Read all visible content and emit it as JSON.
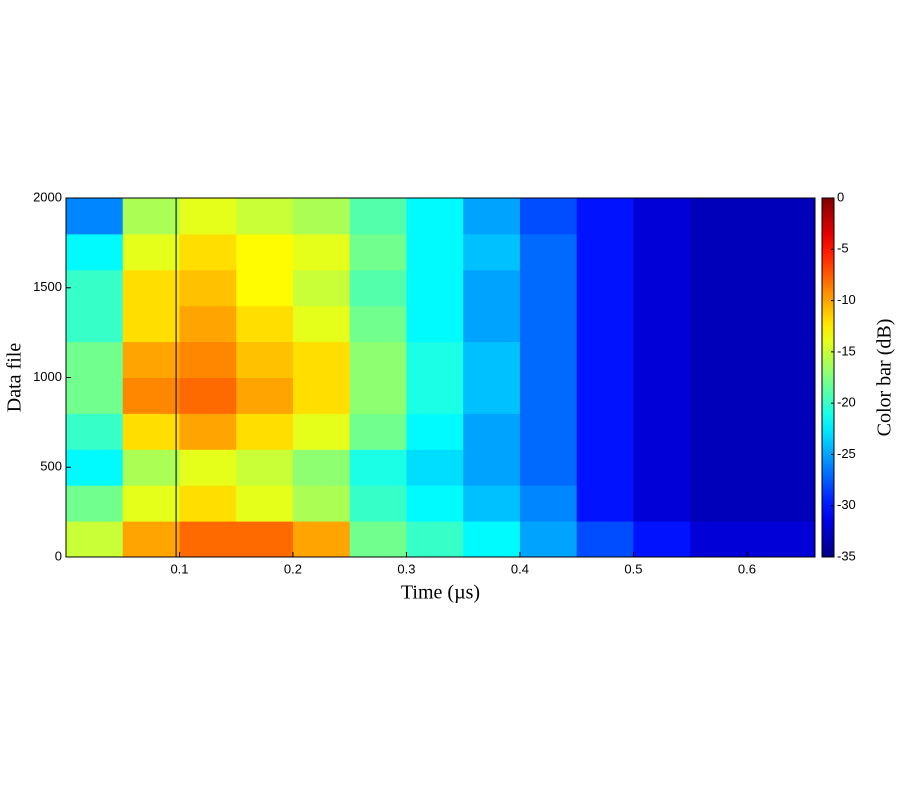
{
  "chart_data": {
    "type": "heatmap",
    "xlabel": "Time (µs)",
    "ylabel": "Data file",
    "colorbar_label": "Color bar (dB)",
    "colormap": "jet",
    "x": [
      0.025,
      0.075,
      0.125,
      0.175,
      0.225,
      0.275,
      0.325,
      0.375,
      0.425,
      0.475,
      0.525,
      0.575,
      0.625
    ],
    "y": [
      100,
      300,
      500,
      700,
      900,
      1100,
      1300,
      1500,
      1700,
      1900
    ],
    "values": [
      [
        -15,
        -10,
        -8,
        -8,
        -10,
        -18,
        -20,
        -22,
        -25,
        -28,
        -30,
        -32,
        -32
      ],
      [
        -18,
        -14,
        -12,
        -14,
        -16,
        -20,
        -22,
        -24,
        -26,
        -30,
        -32,
        -33,
        -33
      ],
      [
        -22,
        -16,
        -14,
        -15,
        -17,
        -21,
        -23,
        -25,
        -27,
        -30,
        -32,
        -33,
        -33
      ],
      [
        -20,
        -12,
        -10,
        -12,
        -14,
        -18,
        -22,
        -25,
        -27,
        -30,
        -32,
        -33,
        -33
      ],
      [
        -18,
        -9,
        -8,
        -10,
        -12,
        -17,
        -21,
        -24,
        -27,
        -30,
        -32,
        -33,
        -33
      ],
      [
        -18,
        -10,
        -9,
        -11,
        -12,
        -17,
        -21,
        -24,
        -27,
        -30,
        -32,
        -33,
        -33
      ],
      [
        -20,
        -12,
        -10,
        -12,
        -14,
        -18,
        -22,
        -25,
        -27,
        -30,
        -32,
        -33,
        -33
      ],
      [
        -20,
        -12,
        -11,
        -13,
        -15,
        -19,
        -22,
        -25,
        -27,
        -30,
        -32,
        -33,
        -33
      ],
      [
        -22,
        -14,
        -12,
        -13,
        -14,
        -18,
        -22,
        -24,
        -27,
        -30,
        -32,
        -33,
        -33
      ],
      [
        -26,
        -16,
        -14,
        -15,
        -16,
        -19,
        -22,
        -25,
        -28,
        -30,
        -32,
        -33,
        -33
      ]
    ],
    "xlim": [
      0,
      0.66
    ],
    "xticks": [
      0.1,
      0.2,
      0.3,
      0.4,
      0.5,
      0.6
    ],
    "ylim": [
      0,
      2000
    ],
    "yticks": [
      0,
      500,
      1000,
      1500,
      2000
    ],
    "clim": [
      -35,
      0
    ],
    "cticks": [
      0,
      -5,
      -10,
      -15,
      -20,
      -25,
      -30,
      -35
    ],
    "vline_x": 0.097
  }
}
